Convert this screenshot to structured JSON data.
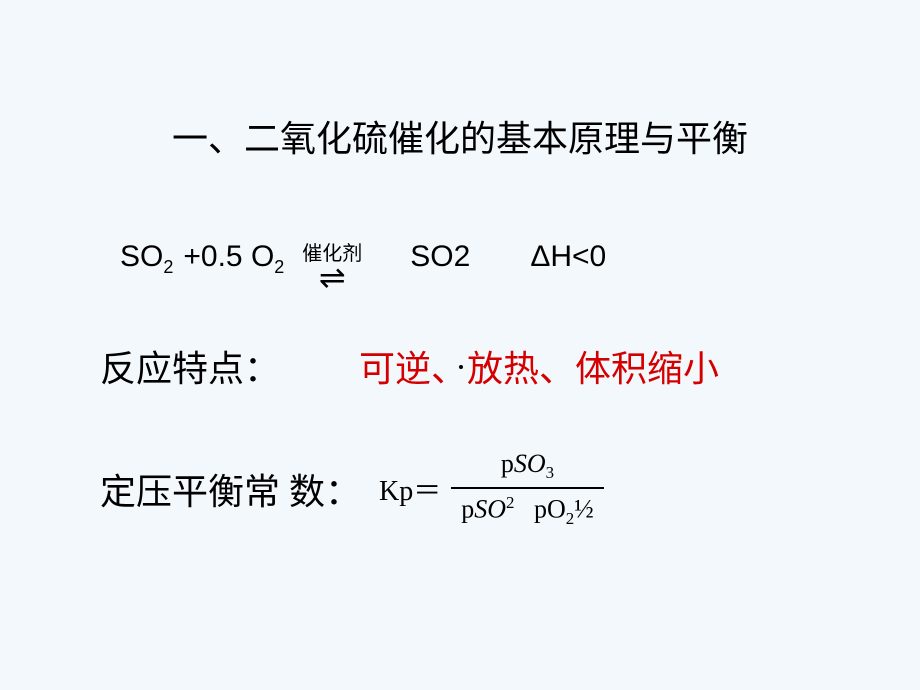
{
  "colors": {
    "background": "#f3f8fc",
    "text": "#000000",
    "highlight": "#d40000"
  },
  "title": "一、二氧化硫催化的基本原理与平衡",
  "equation": {
    "lhs_a": "SO",
    "lhs_a_sub": "2",
    "plus": " +  ",
    "coef": "0.5 O",
    "coef_sub": "2",
    "catalyst_label": "催化剂",
    "equilibrium_symbol": "⇌",
    "rhs": "SO2",
    "dh": "ΔH<0"
  },
  "reaction": {
    "label": "反应特点：",
    "value": "可逆、放热、体积缩小"
  },
  "kp": {
    "label": "定压平衡常 数：",
    "kp_text": "Kp＝",
    "num_p": "p",
    "num_so": "SO",
    "num_sub": "3",
    "den_p1": "p",
    "den_so": "SO",
    "den_so_sup": "2",
    "den_p2": "pO",
    "den_o_sub": "2",
    "den_half": "½"
  }
}
